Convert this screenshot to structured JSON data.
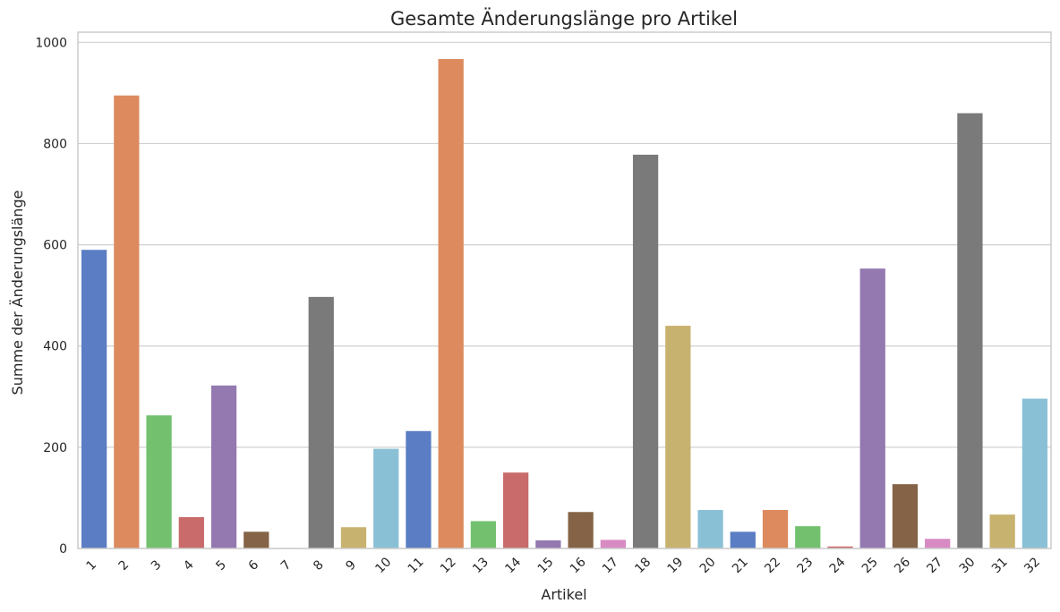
{
  "chart_data": {
    "type": "bar",
    "title": "Gesamte Änderungslänge pro Artikel",
    "xlabel": "Artikel",
    "ylabel": "Summe der Änderungslänge",
    "ylim": [
      0,
      1020
    ],
    "yticks": [
      0,
      200,
      400,
      600,
      800,
      1000
    ],
    "grid": true,
    "categories": [
      "1",
      "2",
      "3",
      "4",
      "5",
      "6",
      "7",
      "8",
      "9",
      "10",
      "11",
      "12",
      "13",
      "14",
      "15",
      "16",
      "17",
      "18",
      "19",
      "20",
      "21",
      "22",
      "23",
      "24",
      "25",
      "26",
      "27",
      "30",
      "31",
      "32"
    ],
    "values": [
      590,
      895,
      263,
      62,
      322,
      33,
      1,
      497,
      42,
      197,
      232,
      967,
      54,
      150,
      16,
      72,
      17,
      778,
      440,
      76,
      33,
      76,
      44,
      4,
      553,
      127,
      19,
      860,
      67,
      296
    ],
    "colors": [
      "#5a7dc3",
      "#dd8a5e",
      "#73c16e",
      "#c96a6b",
      "#9478b0",
      "#846346",
      "#d88ac3",
      "#7a7a7a",
      "#c8b26f",
      "#8ac0d6"
    ]
  }
}
